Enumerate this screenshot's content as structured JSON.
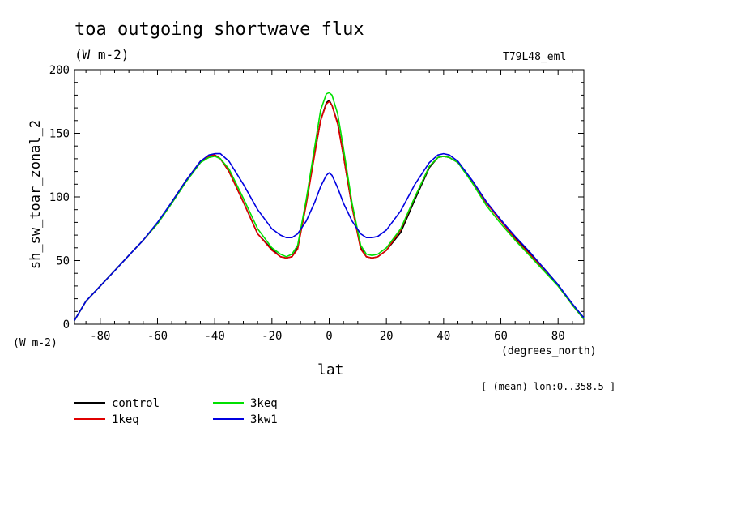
{
  "title": "toa outgoing shortwave flux",
  "subtitle": "(W m-2)",
  "tag": "T79L48_eml",
  "mean_note": "[ (mean) lon:0..358.5 ]",
  "chart_data": {
    "type": "line",
    "title": "toa outgoing shortwave flux",
    "units": "(W m-2)",
    "ylabel": "sh_sw_toar_zonal_2",
    "yunits": "(W m-2)",
    "xlabel": "lat",
    "xunits": "(degrees_north)",
    "xlim": [
      -89,
      89
    ],
    "ylim": [
      0,
      200
    ],
    "xticks": [
      -80,
      -60,
      -40,
      -20,
      0,
      20,
      40,
      60,
      80
    ],
    "yticks": [
      0,
      50,
      100,
      150,
      200
    ],
    "x": [
      -89,
      -85,
      -80,
      -75,
      -70,
      -65,
      -60,
      -55,
      -50,
      -45,
      -42,
      -40,
      -38,
      -35,
      -30,
      -25,
      -20,
      -17,
      -15,
      -13,
      -11,
      -8,
      -5,
      -3,
      -1,
      0,
      1,
      3,
      5,
      8,
      11,
      13,
      15,
      17,
      20,
      25,
      30,
      35,
      38,
      40,
      42,
      45,
      50,
      55,
      60,
      65,
      70,
      75,
      80,
      85,
      89
    ],
    "series": [
      {
        "name": "control",
        "color": "#000000",
        "values": [
          3,
          18,
          30,
          42,
          54,
          66,
          79,
          95,
          112,
          127,
          132,
          133,
          130,
          120,
          96,
          71,
          59,
          53,
          52,
          53,
          60,
          95,
          135,
          160,
          174,
          176,
          172,
          158,
          132,
          92,
          60,
          53,
          52,
          53,
          58,
          72,
          98,
          123,
          131,
          132,
          131,
          127,
          112,
          95,
          82,
          68,
          56,
          44,
          31,
          15,
          4
        ]
      },
      {
        "name": "1keq",
        "color": "#e00000",
        "values": [
          3,
          18,
          30,
          42,
          54,
          66,
          79,
          96,
          113,
          128,
          132,
          133,
          130,
          120,
          96,
          71,
          58,
          53,
          52,
          53,
          59,
          94,
          134,
          160,
          173,
          175,
          172,
          157,
          132,
          92,
          59,
          53,
          52,
          53,
          58,
          74,
          100,
          124,
          131,
          132,
          131,
          127,
          112,
          95,
          81,
          67,
          55,
          43,
          30,
          15,
          4
        ]
      },
      {
        "name": "3keq",
        "color": "#00e000",
        "values": [
          3,
          18,
          30,
          42,
          54,
          66,
          79,
          95,
          112,
          127,
          131,
          132,
          130,
          122,
          99,
          75,
          60,
          55,
          53,
          55,
          62,
          98,
          140,
          168,
          181,
          182,
          180,
          165,
          138,
          95,
          62,
          55,
          54,
          55,
          60,
          75,
          100,
          124,
          131,
          132,
          131,
          127,
          111,
          93,
          79,
          66,
          54,
          42,
          30,
          15,
          4
        ]
      },
      {
        "name": "3kw1",
        "color": "#0000e0",
        "values": [
          3,
          18,
          30,
          42,
          54,
          66,
          80,
          96,
          113,
          128,
          133,
          134,
          134,
          128,
          110,
          90,
          75,
          70,
          68,
          68,
          71,
          81,
          96,
          108,
          117,
          119,
          117,
          107,
          95,
          81,
          71,
          68,
          68,
          69,
          74,
          89,
          110,
          127,
          133,
          134,
          133,
          128,
          113,
          96,
          82,
          69,
          57,
          44,
          31,
          16,
          5
        ]
      }
    ]
  }
}
